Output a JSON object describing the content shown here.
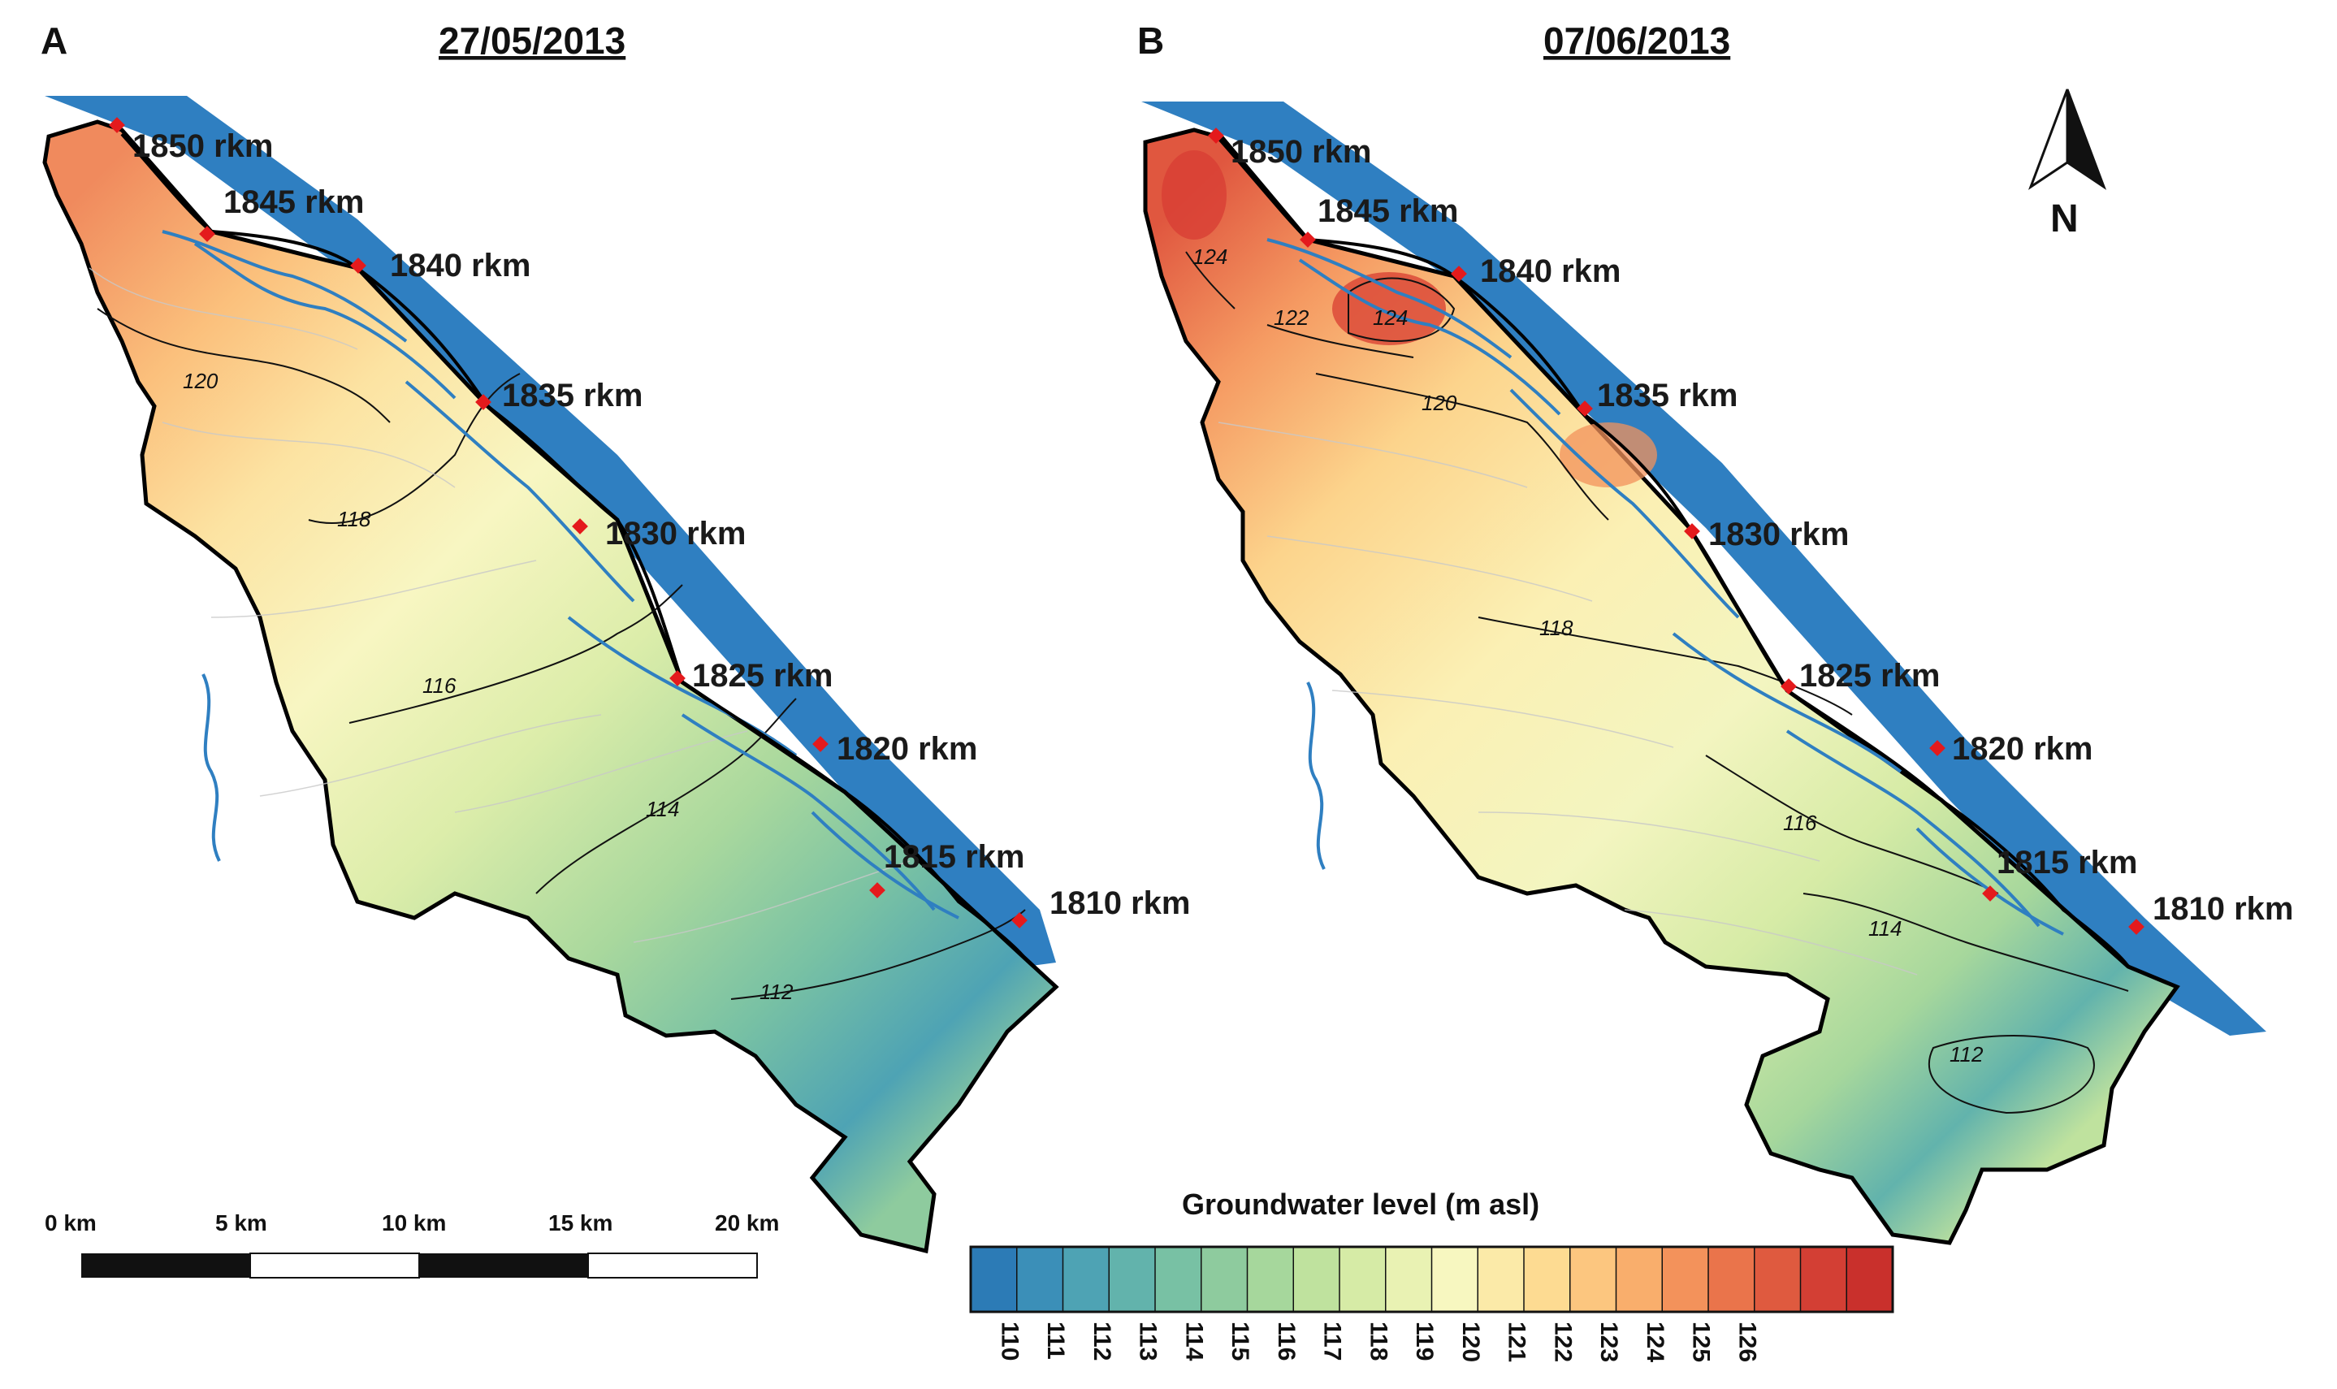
{
  "panels": [
    {
      "letter": "A",
      "date": "27/05/2013"
    },
    {
      "letter": "B",
      "date": "07/06/2013"
    }
  ],
  "river_km_markers": [
    "1850 rkm",
    "1845 rkm",
    "1840 rkm",
    "1835 rkm",
    "1830 rkm",
    "1825 rkm",
    "1820 rkm",
    "1815 rkm",
    "1810 rkm"
  ],
  "isolines": {
    "A": [
      "120",
      "118",
      "116",
      "114",
      "112"
    ],
    "B": [
      "124",
      "122",
      "124",
      "120",
      "118",
      "116",
      "114",
      "112"
    ]
  },
  "scale_bar": {
    "labels": [
      "0 km",
      "5 km",
      "10 km",
      "15 km",
      "20 km"
    ]
  },
  "north_arrow": {
    "label": "N",
    "icon": "north-arrow-icon"
  },
  "legend": {
    "title": "Groundwater level (m asl)",
    "ticks": [
      "110",
      "111",
      "112",
      "113",
      "114",
      "115",
      "116",
      "117",
      "118",
      "119",
      "120",
      "121",
      "122",
      "123",
      "124",
      "125",
      "126"
    ],
    "colors": [
      "#2c7bb6",
      "#3b8fb8",
      "#4ea3b4",
      "#62b3ac",
      "#78c1a4",
      "#8ecb9e",
      "#a6d79c",
      "#bfe29e",
      "#d6eba6",
      "#e9f2b3",
      "#f7f7c0",
      "#fbeaa8",
      "#fddb92",
      "#fcc67f",
      "#f9ae6c",
      "#f3925b",
      "#ea744b",
      "#df5a3f",
      "#d33f34",
      "#c9302c"
    ]
  },
  "colors": {
    "river": "#2f7fc1",
    "marker": "#e41a1c",
    "outline": "#000000"
  }
}
